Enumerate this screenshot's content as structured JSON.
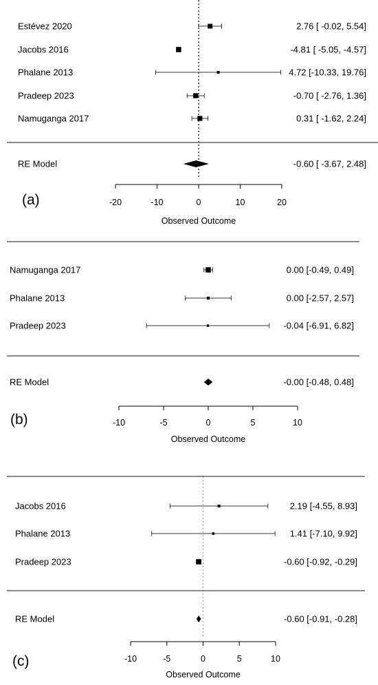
{
  "chart_data": [
    {
      "type": "forest",
      "panel_label": "(a)",
      "xlabel": "Observed Outcome",
      "xlim": [
        -20,
        20
      ],
      "xticks": [
        -20,
        -10,
        0,
        10,
        20
      ],
      "ref_line": 0,
      "ref_line_style": "dotted-black",
      "studies": [
        {
          "label": "Estévez 2020",
          "est": 2.76,
          "lo": -0.02,
          "hi": 5.54,
          "ci_text": "2.76 [ -0.02,  5.54]",
          "weight": 0.55
        },
        {
          "label": "Jacobs 2016",
          "est": -4.81,
          "lo": -5.05,
          "hi": -4.57,
          "ci_text": "-4.81 [ -5.05, -4.57]",
          "weight": 0.62
        },
        {
          "label": "Phalane 2013",
          "est": 4.72,
          "lo": -10.33,
          "hi": 19.76,
          "ci_text": "4.72 [-10.33, 19.76]",
          "weight": 0.22
        },
        {
          "label": "Pradeep 2023",
          "est": -0.7,
          "lo": -2.76,
          "hi": 1.36,
          "ci_text": "-0.70 [ -2.76,  1.36]",
          "weight": 0.58
        },
        {
          "label": "Namuganga 2017",
          "est": 0.31,
          "lo": -1.62,
          "hi": 2.24,
          "ci_text": "0.31 [ -1.62,  2.24]",
          "weight": 0.58
        }
      ],
      "summary": {
        "label": "RE Model",
        "est": -0.6,
        "lo": -3.67,
        "hi": 2.48,
        "ci_text": "-0.60 [ -3.67,  2.48]"
      }
    },
    {
      "type": "forest",
      "panel_label": "(b)",
      "xlabel": "Observed Outcome",
      "xlim": [
        -10,
        10
      ],
      "xticks": [
        -10,
        -5,
        0,
        5,
        10
      ],
      "ref_line": 0,
      "ref_line_style": "none",
      "studies": [
        {
          "label": "Namuganga 2017",
          "est": 0.0,
          "lo": -0.49,
          "hi": 0.49,
          "ci_text": "0.00 [-0.49, 0.49]",
          "weight": 0.62
        },
        {
          "label": "Phalane 2013",
          "est": 0.0,
          "lo": -2.57,
          "hi": 2.57,
          "ci_text": "0.00 [-2.57, 2.57]",
          "weight": 0.25
        },
        {
          "label": "Pradeep 2023",
          "est": -0.04,
          "lo": -6.91,
          "hi": 6.82,
          "ci_text": "-0.04 [-6.91, 6.82]",
          "weight": 0.15
        }
      ],
      "summary": {
        "label": "RE Model",
        "est": 0.0,
        "lo": -0.48,
        "hi": 0.48,
        "ci_text": "-0.00 [-0.48, 0.48]"
      }
    },
    {
      "type": "forest",
      "panel_label": "(c)",
      "xlabel": "Observed Outcome",
      "xlim": [
        -10,
        10
      ],
      "xticks": [
        -10,
        -5,
        0,
        5,
        10
      ],
      "ref_line": 0,
      "ref_line_style": "dotted-gray",
      "studies": [
        {
          "label": "Jacobs 2016",
          "est": 2.19,
          "lo": -4.55,
          "hi": 8.93,
          "ci_text": "2.19 [-4.55,  8.93]",
          "weight": 0.22
        },
        {
          "label": "Phalane 2013",
          "est": 1.41,
          "lo": -7.1,
          "hi": 9.92,
          "ci_text": "1.41 [-7.10,  9.92]",
          "weight": 0.18
        },
        {
          "label": "Pradeep 2023",
          "est": -0.6,
          "lo": -0.92,
          "hi": -0.29,
          "ci_text": "-0.60 [-0.92, -0.29]",
          "weight": 0.62
        }
      ],
      "summary": {
        "label": "RE Model",
        "est": -0.6,
        "lo": -0.91,
        "hi": -0.28,
        "ci_text": "-0.60 [-0.91, -0.28]"
      }
    }
  ]
}
